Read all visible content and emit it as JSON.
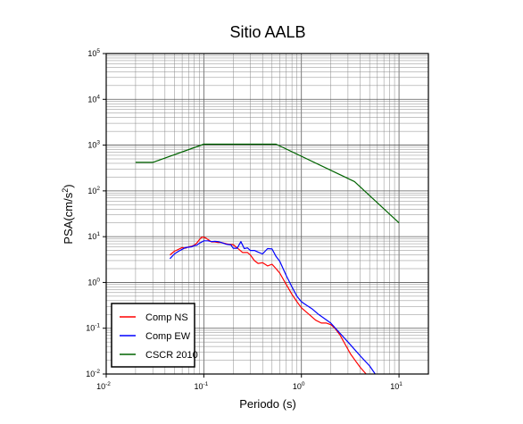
{
  "chart_data": {
    "type": "line",
    "title": "Sitio AALB",
    "xlabel": "Periodo (s)",
    "ylabel": "PSA(cm/s²)",
    "ylabel_parts": [
      "PSA(cm/s",
      "2",
      ")"
    ],
    "x_scale": "log",
    "y_scale": "log",
    "xlim": [
      0.01,
      20
    ],
    "ylim": [
      0.01,
      100000
    ],
    "x_ticks": [
      {
        "base": "10",
        "exp": "-2",
        "value": 0.01
      },
      {
        "base": "10",
        "exp": "-1",
        "value": 0.1
      },
      {
        "base": "10",
        "exp": "0",
        "value": 1
      },
      {
        "base": "10",
        "exp": "1",
        "value": 10
      }
    ],
    "y_ticks": [
      {
        "base": "10",
        "exp": "-2",
        "value": 0.01
      },
      {
        "base": "10",
        "exp": "-1",
        "value": 0.1
      },
      {
        "base": "10",
        "exp": "0",
        "value": 1
      },
      {
        "base": "10",
        "exp": "1",
        "value": 10
      },
      {
        "base": "10",
        "exp": "2",
        "value": 100
      },
      {
        "base": "10",
        "exp": "3",
        "value": 1000
      },
      {
        "base": "10",
        "exp": "4",
        "value": 10000
      },
      {
        "base": "10",
        "exp": "5",
        "value": 100000
      }
    ],
    "grid": true,
    "legend_position": "bottom-left",
    "series": [
      {
        "name": "Comp NS",
        "color": "#ff0000",
        "x": [
          0.045,
          0.05,
          0.055,
          0.06,
          0.065,
          0.07,
          0.075,
          0.08,
          0.085,
          0.09,
          0.095,
          0.1,
          0.105,
          0.11,
          0.12,
          0.13,
          0.14,
          0.15,
          0.17,
          0.18,
          0.2,
          0.22,
          0.25,
          0.28,
          0.3,
          0.33,
          0.36,
          0.4,
          0.45,
          0.5,
          0.55,
          0.6,
          0.7,
          0.8,
          0.9,
          1.0,
          1.2,
          1.4,
          1.6,
          1.8,
          2.0,
          2.2,
          2.5,
          2.8,
          3.2,
          3.6,
          4.0,
          4.6
        ],
        "y": [
          4.0,
          4.8,
          5.3,
          5.8,
          5.6,
          6.0,
          6.2,
          6.5,
          7.3,
          8.6,
          9.7,
          9.8,
          9.3,
          8.7,
          7.7,
          7.7,
          7.5,
          7.5,
          7.0,
          6.8,
          6.7,
          5.7,
          4.5,
          4.5,
          4.0,
          3.0,
          2.6,
          2.7,
          2.3,
          2.5,
          2.0,
          1.6,
          0.9,
          0.55,
          0.38,
          0.28,
          0.2,
          0.15,
          0.13,
          0.13,
          0.12,
          0.1,
          0.07,
          0.045,
          0.027,
          0.019,
          0.014,
          0.01
        ]
      },
      {
        "name": "Comp EW",
        "color": "#0000ff",
        "x": [
          0.045,
          0.05,
          0.055,
          0.06,
          0.065,
          0.07,
          0.075,
          0.08,
          0.085,
          0.09,
          0.1,
          0.11,
          0.12,
          0.13,
          0.14,
          0.15,
          0.17,
          0.19,
          0.2,
          0.22,
          0.24,
          0.26,
          0.28,
          0.3,
          0.33,
          0.36,
          0.4,
          0.45,
          0.5,
          0.55,
          0.6,
          0.7,
          0.8,
          0.9,
          1.0,
          1.1,
          1.3,
          1.5,
          2.0,
          3.0,
          4.0,
          5.0,
          5.7
        ],
        "y": [
          3.3,
          4.2,
          4.8,
          5.3,
          5.8,
          5.9,
          6.0,
          6.4,
          6.5,
          7.2,
          8.1,
          8.1,
          7.8,
          7.9,
          7.8,
          7.5,
          6.8,
          6.6,
          5.6,
          5.6,
          7.8,
          5.5,
          5.7,
          5.0,
          5.0,
          4.6,
          4.2,
          5.5,
          5.4,
          3.7,
          2.9,
          1.4,
          0.8,
          0.5,
          0.38,
          0.33,
          0.26,
          0.2,
          0.13,
          0.05,
          0.025,
          0.015,
          0.01
        ]
      },
      {
        "name": "CSCR 2010",
        "color": "#006400",
        "x": [
          0.02,
          0.03,
          0.1,
          0.55,
          3.5,
          10.0
        ],
        "y": [
          420,
          420,
          1050,
          1050,
          160,
          20
        ]
      }
    ]
  }
}
